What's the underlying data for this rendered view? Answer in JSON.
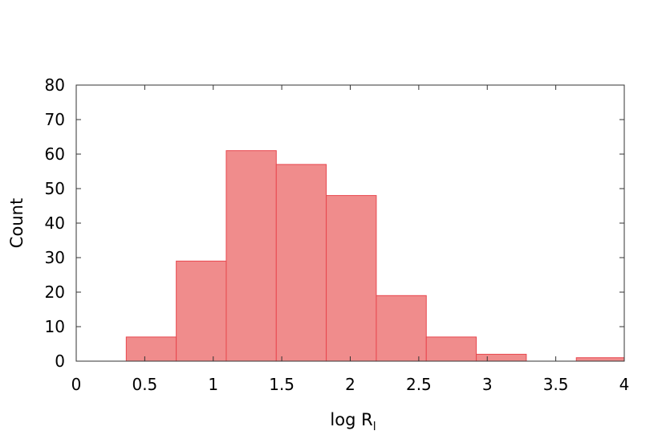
{
  "chart_data": {
    "type": "bar",
    "subtype": "histogram",
    "title": "",
    "xlabel": "log R",
    "xlabel_subscript": "l",
    "ylabel": "Count",
    "xlim": [
      0,
      4
    ],
    "ylim": [
      0,
      80
    ],
    "xticks": [
      "0",
      "0.5",
      "1",
      "1.5",
      "2",
      "2.5",
      "3",
      "3.5",
      "4"
    ],
    "yticks": [
      "0",
      "10",
      "20",
      "30",
      "40",
      "50",
      "60",
      "70",
      "80"
    ],
    "bins": [
      {
        "x0": 0.365,
        "x1": 0.73,
        "count": 7
      },
      {
        "x0": 0.73,
        "x1": 1.095,
        "count": 29
      },
      {
        "x0": 1.095,
        "x1": 1.46,
        "count": 61
      },
      {
        "x0": 1.46,
        "x1": 1.825,
        "count": 57
      },
      {
        "x0": 1.825,
        "x1": 2.19,
        "count": 48
      },
      {
        "x0": 2.19,
        "x1": 2.555,
        "count": 19
      },
      {
        "x0": 2.555,
        "x1": 2.92,
        "count": 7
      },
      {
        "x0": 2.92,
        "x1": 3.285,
        "count": 2
      },
      {
        "x0": 3.285,
        "x1": 3.65,
        "count": 0
      },
      {
        "x0": 3.65,
        "x1": 4.015,
        "count": 1
      }
    ],
    "grid": false,
    "colors": {
      "bar_fill": "#f08c8c",
      "bar_stroke": "#e8474e",
      "axis": "#333333"
    }
  }
}
